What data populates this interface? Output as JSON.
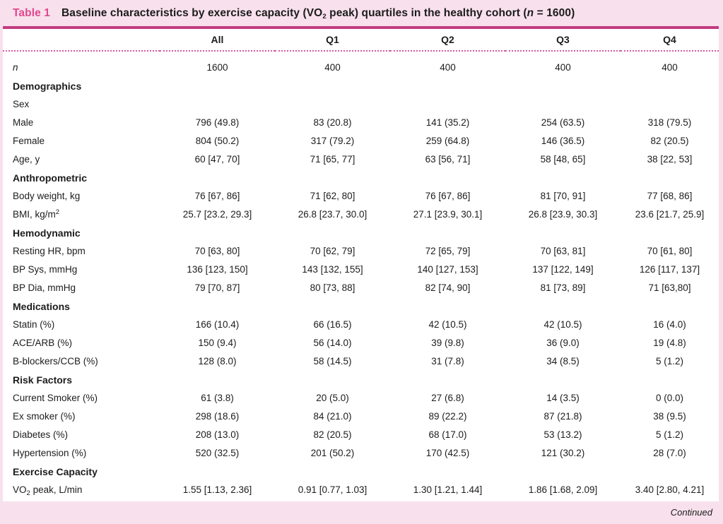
{
  "title": {
    "label": "Table 1",
    "text": "Baseline characteristics by exercise capacity (VO_{2} peak) quartiles in the healthy cohort (*n* = 1600)"
  },
  "table": {
    "columns": [
      "All",
      "Q1",
      "Q2",
      "Q3",
      "Q4"
    ],
    "rows": [
      {
        "type": "data",
        "label": "*n*",
        "values": [
          "1600",
          "400",
          "400",
          "400",
          "400"
        ]
      },
      {
        "type": "section",
        "label": "Demographics"
      },
      {
        "type": "plain",
        "label": "Sex"
      },
      {
        "type": "data",
        "label": "Male",
        "values": [
          "796 (49.8)",
          "83 (20.8)",
          "141 (35.2)",
          "254 (63.5)",
          "318 (79.5)"
        ]
      },
      {
        "type": "data",
        "label": "Female",
        "values": [
          "804 (50.2)",
          "317 (79.2)",
          "259 (64.8)",
          "146 (36.5)",
          "82 (20.5)"
        ]
      },
      {
        "type": "data",
        "label": "Age, y",
        "values": [
          "60 [47, 70]",
          "71 [65, 77]",
          "63 [56, 71]",
          "58 [48, 65]",
          "38 [22, 53]"
        ]
      },
      {
        "type": "section",
        "label": "Anthropometric"
      },
      {
        "type": "data",
        "label": "Body weight, kg",
        "values": [
          "76 [67, 86]",
          "71 [62, 80]",
          "76 [67, 86]",
          "81 [70, 91]",
          "77 [68, 86]"
        ]
      },
      {
        "type": "data",
        "label": "BMI, kg/m^{2}",
        "values": [
          "25.7 [23.2, 29.3]",
          "26.8 [23.7, 30.0]",
          "27.1 [23.9, 30.1]",
          "26.8 [23.9, 30.3]",
          "23.6 [21.7, 25.9]"
        ]
      },
      {
        "type": "section",
        "label": "Hemodynamic"
      },
      {
        "type": "data",
        "label": "Resting HR, bpm",
        "values": [
          "70 [63, 80]",
          "70 [62, 79]",
          "72 [65, 79]",
          "70 [63, 81]",
          "70 [61, 80]"
        ]
      },
      {
        "type": "data",
        "label": "BP Sys, mmHg",
        "values": [
          "136 [123, 150]",
          "143 [132, 155]",
          "140 [127, 153]",
          "137 [122, 149]",
          "126 [117, 137]"
        ]
      },
      {
        "type": "data",
        "label": "BP Dia, mmHg",
        "values": [
          "79 [70, 87]",
          "80 [73, 88]",
          "82 [74, 90]",
          "81 [73, 89]",
          "71 [63,80]"
        ]
      },
      {
        "type": "section",
        "label": "Medications"
      },
      {
        "type": "data",
        "label": "Statin (%)",
        "values": [
          "166 (10.4)",
          "66 (16.5)",
          "42 (10.5)",
          "42 (10.5)",
          "16 (4.0)"
        ]
      },
      {
        "type": "data",
        "label": "ACE/ARB (%)",
        "values": [
          "150 (9.4)",
          "56 (14.0)",
          "39 (9.8)",
          "36 (9.0)",
          "19 (4.8)"
        ]
      },
      {
        "type": "data",
        "label": "B-blockers/CCB (%)",
        "values": [
          "128 (8.0)",
          "58 (14.5)",
          "31 (7.8)",
          "34 (8.5)",
          "5 (1.2)"
        ]
      },
      {
        "type": "section",
        "label": "Risk Factors"
      },
      {
        "type": "data",
        "label": "Current Smoker (%)",
        "values": [
          "61 (3.8)",
          "20 (5.0)",
          "27 (6.8)",
          "14 (3.5)",
          "0 (0.0)"
        ]
      },
      {
        "type": "data",
        "label": "Ex smoker (%)",
        "values": [
          "298 (18.6)",
          "84 (21.0)",
          "89 (22.2)",
          "87 (21.8)",
          "38 (9.5)"
        ]
      },
      {
        "type": "data",
        "label": "Diabetes (%)",
        "values": [
          "208 (13.0)",
          "82 (20.5)",
          "68 (17.0)",
          "53 (13.2)",
          "5 (1.2)"
        ]
      },
      {
        "type": "data",
        "label": "Hypertension (%)",
        "values": [
          "520 (32.5)",
          "201 (50.2)",
          "170 (42.5)",
          "121 (30.2)",
          "28 (7.0)"
        ]
      },
      {
        "type": "section",
        "label": "Exercise Capacity"
      },
      {
        "type": "data",
        "label": "VO_{2} peak, L/min",
        "values": [
          "1.55 [1.13, 2.36]",
          "0.91 [0.77, 1.03]",
          "1.30 [1.21, 1.44]",
          "1.86 [1.68, 2.09]",
          "3.40 [2.80, 4.21]"
        ]
      }
    ]
  },
  "footer": {
    "continued": "Continued"
  },
  "colors": {
    "background": "#f8e1ec",
    "panel": "#ffffff",
    "accent": "#e0478f",
    "rule": "#c23a80",
    "dots": "#d65a9e",
    "text": "#1c1c1c"
  }
}
